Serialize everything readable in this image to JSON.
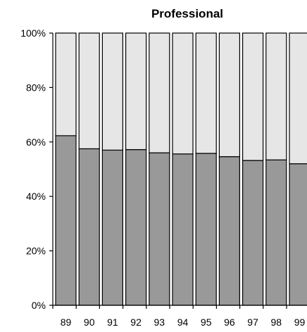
{
  "chart_data": {
    "type": "bar",
    "stacked": true,
    "percent": true,
    "title": "Professional",
    "categories": [
      "89",
      "90",
      "91",
      "92",
      "93",
      "94",
      "95",
      "96",
      "97",
      "98",
      "99"
    ],
    "series": [
      {
        "values": [
          62.3,
          57.5,
          57.0,
          57.2,
          56.0,
          55.6,
          55.8,
          54.6,
          53.2,
          53.4,
          52.0
        ],
        "color": "#999999"
      },
      {
        "values": [
          37.7,
          42.5,
          43.0,
          42.8,
          44.0,
          44.4,
          44.2,
          45.4,
          46.8,
          46.6,
          48.0
        ],
        "color": "#e6e6e6"
      }
    ],
    "ylim": [
      0,
      100
    ],
    "yticks": [
      "0%",
      "20%",
      "40%",
      "60%",
      "80%",
      "100%"
    ],
    "grid": false,
    "legend": "none"
  }
}
